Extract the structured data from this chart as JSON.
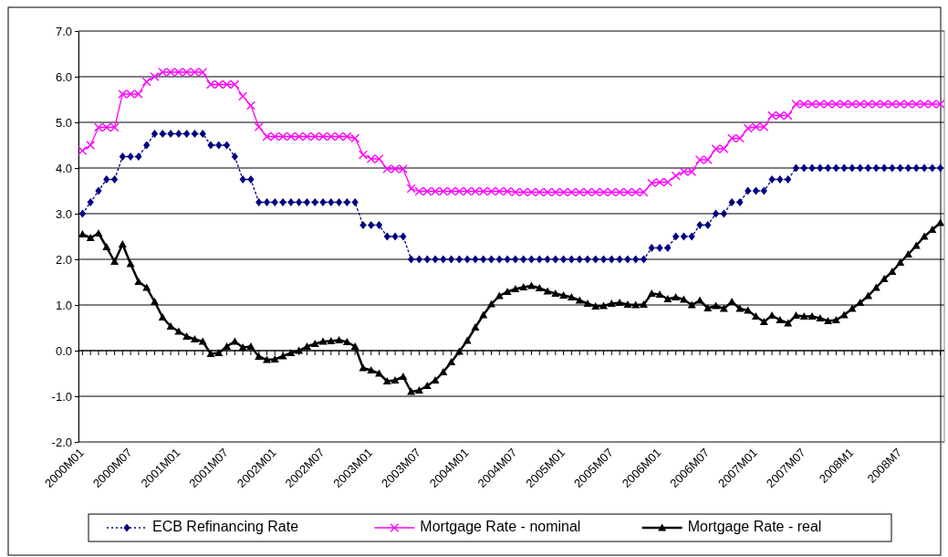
{
  "chart_data": {
    "type": "line",
    "categories": [
      "2000M01",
      null,
      null,
      null,
      null,
      null,
      "2000M07",
      null,
      null,
      null,
      null,
      null,
      "2001M01",
      null,
      null,
      null,
      null,
      null,
      "2001M07",
      null,
      null,
      null,
      null,
      null,
      "2002M01",
      null,
      null,
      null,
      null,
      null,
      "2002M07",
      null,
      null,
      null,
      null,
      null,
      "2003M01",
      null,
      null,
      null,
      null,
      null,
      "2003M07",
      null,
      null,
      null,
      null,
      null,
      "2004M01",
      null,
      null,
      null,
      null,
      null,
      "2004M07",
      null,
      null,
      null,
      null,
      null,
      "2005M01",
      null,
      null,
      null,
      null,
      null,
      "2005M07",
      null,
      null,
      null,
      null,
      null,
      "2006M01",
      null,
      null,
      null,
      null,
      null,
      "2006M07",
      null,
      null,
      null,
      null,
      null,
      "2007M01",
      null,
      null,
      null,
      null,
      null,
      "2007M07",
      null,
      null,
      null,
      null,
      null,
      "2008M1",
      null,
      null,
      null,
      null,
      null,
      "2008M7",
      null,
      null,
      null,
      null,
      null
    ],
    "series": [
      {
        "name": "ECB Refinancing Rate",
        "color": "#000080",
        "marker": "diamond",
        "line_style": "dotted",
        "values": [
          3.0,
          3.25,
          3.5,
          3.75,
          3.75,
          4.25,
          4.25,
          4.25,
          4.5,
          4.75,
          4.75,
          4.75,
          4.75,
          4.75,
          4.75,
          4.75,
          4.5,
          4.5,
          4.5,
          4.25,
          3.75,
          3.75,
          3.25,
          3.25,
          3.25,
          3.25,
          3.25,
          3.25,
          3.25,
          3.25,
          3.25,
          3.25,
          3.25,
          3.25,
          3.25,
          2.75,
          2.75,
          2.75,
          2.5,
          2.5,
          2.5,
          2.0,
          2.0,
          2.0,
          2.0,
          2.0,
          2.0,
          2.0,
          2.0,
          2.0,
          2.0,
          2.0,
          2.0,
          2.0,
          2.0,
          2.0,
          2.0,
          2.0,
          2.0,
          2.0,
          2.0,
          2.0,
          2.0,
          2.0,
          2.0,
          2.0,
          2.0,
          2.0,
          2.0,
          2.0,
          2.0,
          2.25,
          2.25,
          2.25,
          2.5,
          2.5,
          2.5,
          2.75,
          2.75,
          3.0,
          3.0,
          3.25,
          3.25,
          3.5,
          3.5,
          3.5,
          3.75,
          3.75,
          3.75,
          4.0,
          4.0,
          4.0,
          4.0,
          4.0,
          4.0,
          4.0,
          4.0,
          4.0,
          4.0,
          4.0,
          4.0,
          4.0,
          4.0,
          4.0,
          4.0,
          4.0,
          4.0,
          4.0
        ]
      },
      {
        "name": "Mortgage Rate - nominal",
        "color": "#ff00ff",
        "marker": "cross",
        "line_style": "solid",
        "values": [
          4.38,
          4.5,
          4.89,
          4.89,
          4.89,
          5.62,
          5.62,
          5.62,
          5.89,
          6.0,
          6.1,
          6.1,
          6.1,
          6.1,
          6.1,
          6.1,
          5.83,
          5.83,
          5.83,
          5.83,
          5.57,
          5.37,
          4.9,
          4.69,
          4.69,
          4.69,
          4.69,
          4.69,
          4.69,
          4.69,
          4.69,
          4.69,
          4.69,
          4.69,
          4.65,
          4.29,
          4.2,
          4.2,
          3.98,
          3.98,
          3.98,
          3.55,
          3.49,
          3.49,
          3.49,
          3.49,
          3.49,
          3.49,
          3.49,
          3.49,
          3.49,
          3.49,
          3.49,
          3.49,
          3.47,
          3.47,
          3.47,
          3.47,
          3.47,
          3.47,
          3.47,
          3.47,
          3.47,
          3.47,
          3.47,
          3.47,
          3.47,
          3.47,
          3.47,
          3.47,
          3.47,
          3.67,
          3.69,
          3.69,
          3.83,
          3.92,
          3.92,
          4.18,
          4.18,
          4.42,
          4.42,
          4.65,
          4.65,
          4.87,
          4.9,
          4.9,
          5.15,
          5.15,
          5.15,
          5.4,
          5.4,
          5.4,
          5.4,
          5.4,
          5.4,
          5.4,
          5.4,
          5.4,
          5.4,
          5.4,
          5.4,
          5.4,
          5.4,
          5.4,
          5.4,
          5.4,
          5.4,
          5.4
        ]
      },
      {
        "name": "Mortgage Rate - real",
        "color": "#000000",
        "marker": "triangle",
        "line_style": "solid",
        "values": [
          2.55,
          2.47,
          2.57,
          2.27,
          1.95,
          2.33,
          1.9,
          1.51,
          1.38,
          1.07,
          0.73,
          0.53,
          0.42,
          0.31,
          0.25,
          0.2,
          -0.07,
          -0.05,
          0.09,
          0.2,
          0.07,
          0.09,
          -0.13,
          -0.2,
          -0.19,
          -0.12,
          -0.05,
          0.0,
          0.09,
          0.15,
          0.2,
          0.21,
          0.23,
          0.19,
          0.09,
          -0.38,
          -0.43,
          -0.5,
          -0.67,
          -0.65,
          -0.57,
          -0.9,
          -0.87,
          -0.77,
          -0.65,
          -0.47,
          -0.25,
          -0.02,
          0.22,
          0.51,
          0.78,
          1.02,
          1.2,
          1.29,
          1.35,
          1.39,
          1.42,
          1.37,
          1.3,
          1.25,
          1.21,
          1.17,
          1.1,
          1.03,
          0.97,
          0.98,
          1.03,
          1.05,
          1.01,
          1.0,
          1.01,
          1.25,
          1.23,
          1.13,
          1.17,
          1.12,
          1.0,
          1.1,
          0.93,
          0.98,
          0.92,
          1.07,
          0.92,
          0.88,
          0.75,
          0.63,
          0.77,
          0.67,
          0.6,
          0.77,
          0.75,
          0.75,
          0.71,
          0.65,
          0.67,
          0.78,
          0.92,
          1.05,
          1.2,
          1.38,
          1.57,
          1.73,
          1.93,
          2.11,
          2.3,
          2.5,
          2.65,
          2.8
        ]
      }
    ],
    "ylim": [
      -2.0,
      7.0
    ],
    "yticks": [
      {
        "value": -2,
        "label": "-2.0"
      },
      {
        "value": -1,
        "label": "-1.0"
      },
      {
        "value": 0,
        "label": "0.0"
      },
      {
        "value": 1,
        "label": "1.0"
      },
      {
        "value": 2,
        "label": "2.0"
      },
      {
        "value": 3,
        "label": "3.0"
      },
      {
        "value": 4,
        "label": "4.0"
      },
      {
        "value": 5,
        "label": "5.0"
      },
      {
        "value": 6,
        "label": "6.0"
      },
      {
        "value": 7,
        "label": "7.0"
      }
    ],
    "grid": "y",
    "legend": "bottom"
  }
}
